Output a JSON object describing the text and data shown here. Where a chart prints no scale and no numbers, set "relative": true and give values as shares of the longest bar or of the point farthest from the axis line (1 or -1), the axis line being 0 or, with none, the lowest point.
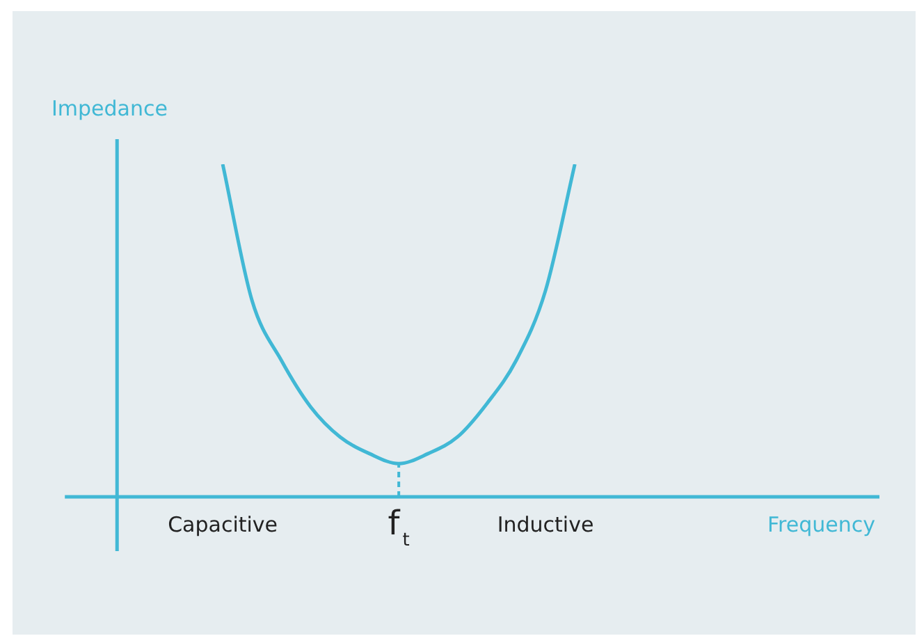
{
  "chart_data": {
    "type": "line",
    "xlabel": "Frequency",
    "ylabel": "Impedance",
    "relative": true,
    "marker": "none",
    "categories": [
      null,
      null,
      null,
      null,
      null,
      "Capacitive",
      null,
      null,
      null,
      null,
      null,
      "f$_{t}$",
      null,
      null,
      null,
      null,
      "Inductive",
      null,
      null,
      null,
      null,
      null,
      null,
      null,
      null,
      null,
      null,
      null
    ],
    "series": [
      {
        "color": "#41b8d5",
        "values": [
          null,
          null,
          null,
          null,
          null,
          1,
          0.59,
          0.41,
          0.27,
          0.18,
          0.13,
          0.1,
          0.13,
          0.18,
          0.28,
          0.41,
          0.62,
          1,
          null,
          null,
          null,
          null,
          null,
          null,
          null,
          null,
          null,
          null
        ]
      }
    ],
    "ref_lines": [
      {
        "axis": "x",
        "value": "f$_{t}$",
        "color": "#41b8d5",
        "line_style": "dashed"
      }
    ]
  }
}
